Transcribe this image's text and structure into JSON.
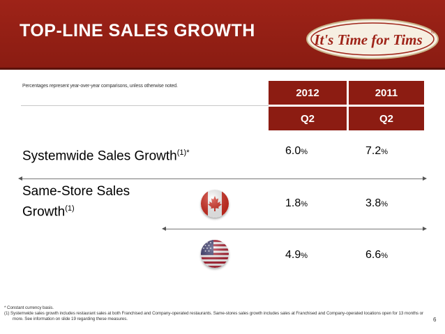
{
  "header": {
    "title": "TOP-LINE SALES GROWTH",
    "logo_text": "It's Time for Tims",
    "logo_mark": "®"
  },
  "note": "Percentages represent year-over-year comparisons, unless otherwise noted.",
  "table": {
    "columns": [
      {
        "year": "2012",
        "quarter": "Q2"
      },
      {
        "year": "2011",
        "quarter": "Q2"
      }
    ],
    "rows": [
      {
        "label_line1": "Systemwide Sales Growth",
        "sup": "(1)*",
        "values": [
          "6.0",
          "7.2"
        ]
      },
      {
        "label_line1": "Same-Store Sales",
        "label_line2": "Growth",
        "sup": "(1)",
        "flag": "canada-flag-icon",
        "values": [
          "1.8",
          "3.8"
        ]
      },
      {
        "flag": "usa-flag-icon",
        "values": [
          "4.9",
          "6.6"
        ]
      }
    ],
    "percent_symbol": "%"
  },
  "footnotes": {
    "line1": "* Constant currency basis.",
    "line2": "(1)  Systemwide sales growth includes restaurant sales at both Franchised and Company-operated restaurants.  Same-stores sales growth includes sales at Franchised and Company-operated locations open for 13 months or",
    "line3": "more.  See information on slide 19 regarding these measures."
  },
  "page_number": "6",
  "colors": {
    "banner": "#9e2318",
    "header_cell": "#8c1c12",
    "title_text": "#ffffff"
  }
}
